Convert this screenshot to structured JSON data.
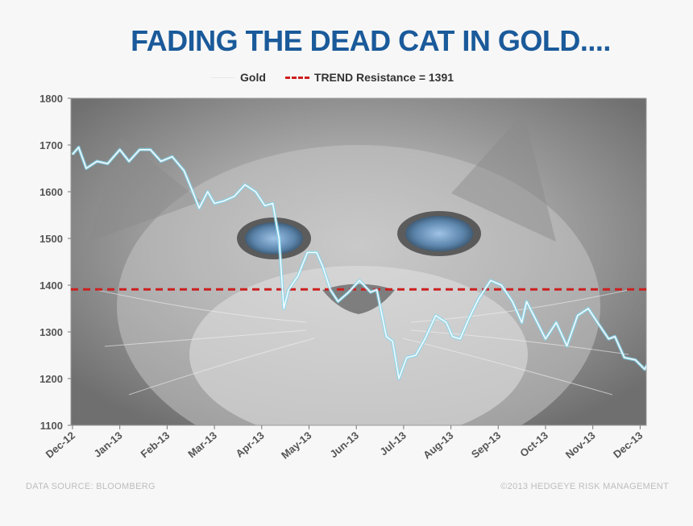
{
  "chart_data": {
    "type": "line",
    "title": "FADING THE DEAD CAT IN GOLD....",
    "xlabel": "",
    "ylabel": "",
    "ylim": [
      1100,
      1800
    ],
    "yticks": [
      1100,
      1200,
      1300,
      1400,
      1500,
      1600,
      1700,
      1800
    ],
    "x_tick_labels": [
      "Dec-12",
      "Jan-13",
      "Feb-13",
      "Mar-13",
      "Apr-13",
      "May-13",
      "Jun-13",
      "Jul-13",
      "Aug-13",
      "Sep-13",
      "Oct-13",
      "Nov-13",
      "Dec-13"
    ],
    "legend_position": "top-center",
    "series": [
      {
        "name": "Gold",
        "color": "#dff6ff",
        "points": [
          [
            "Dec-12",
            1680
          ],
          [
            "2012-12-05",
            1695
          ],
          [
            "2012-12-10",
            1650
          ],
          [
            "2012-12-17",
            1665
          ],
          [
            "2012-12-24",
            1660
          ],
          [
            "2013-01-01",
            1690
          ],
          [
            "2013-01-07",
            1665
          ],
          [
            "2013-01-14",
            1690
          ],
          [
            "2013-01-21",
            1690
          ],
          [
            "2013-01-28",
            1665
          ],
          [
            "2013-02-04",
            1675
          ],
          [
            "2013-02-11",
            1645
          ],
          [
            "2013-02-15",
            1610
          ],
          [
            "2013-02-20",
            1565
          ],
          [
            "2013-02-25",
            1600
          ],
          [
            "2013-03-01",
            1575
          ],
          [
            "2013-03-07",
            1580
          ],
          [
            "2013-03-14",
            1590
          ],
          [
            "2013-03-21",
            1615
          ],
          [
            "2013-03-28",
            1600
          ],
          [
            "2013-04-03",
            1570
          ],
          [
            "2013-04-08",
            1575
          ],
          [
            "2013-04-12",
            1500
          ],
          [
            "2013-04-15",
            1350
          ],
          [
            "2013-04-18",
            1390
          ],
          [
            "2013-04-24",
            1420
          ],
          [
            "2013-04-30",
            1470
          ],
          [
            "2013-05-06",
            1470
          ],
          [
            "2013-05-10",
            1440
          ],
          [
            "2013-05-15",
            1390
          ],
          [
            "2013-05-20",
            1365
          ],
          [
            "2013-05-27",
            1385
          ],
          [
            "2013-06-03",
            1410
          ],
          [
            "2013-06-10",
            1385
          ],
          [
            "2013-06-14",
            1390
          ],
          [
            "2013-06-20",
            1290
          ],
          [
            "2013-06-24",
            1280
          ],
          [
            "2013-06-28",
            1200
          ],
          [
            "2013-07-03",
            1245
          ],
          [
            "2013-07-09",
            1250
          ],
          [
            "2013-07-15",
            1285
          ],
          [
            "2013-07-22",
            1335
          ],
          [
            "2013-07-29",
            1320
          ],
          [
            "2013-08-02",
            1290
          ],
          [
            "2013-08-07",
            1285
          ],
          [
            "2013-08-13",
            1330
          ],
          [
            "2013-08-19",
            1370
          ],
          [
            "2013-08-27",
            1410
          ],
          [
            "2013-09-03",
            1400
          ],
          [
            "2013-09-06",
            1385
          ],
          [
            "2013-09-10",
            1365
          ],
          [
            "2013-09-16",
            1320
          ],
          [
            "2013-09-19",
            1365
          ],
          [
            "2013-09-25",
            1325
          ],
          [
            "2013-10-01",
            1285
          ],
          [
            "2013-10-08",
            1320
          ],
          [
            "2013-10-15",
            1270
          ],
          [
            "2013-10-22",
            1335
          ],
          [
            "2013-10-29",
            1350
          ],
          [
            "2013-11-04",
            1320
          ],
          [
            "2013-11-11",
            1285
          ],
          [
            "2013-11-15",
            1290
          ],
          [
            "2013-11-21",
            1245
          ],
          [
            "2013-11-28",
            1240
          ],
          [
            "2013-12-04",
            1220
          ],
          [
            "2013-12-10",
            1255
          ],
          [
            "2013-12-16",
            1235
          ],
          [
            "2013-12-19",
            1195
          ],
          [
            "2013-12-24",
            1205
          ],
          [
            "2013-12-31",
            1230
          ]
        ]
      },
      {
        "name": "TREND Resistance = 1391",
        "color": "#cc1f1f",
        "style": "dashed",
        "value": 1391
      }
    ],
    "grid": false,
    "background": "grayscale photo of a cat"
  },
  "footer": {
    "source": "DATA SOURCE: BLOOMBERG",
    "copyright": "©2013 HEDGEYE RISK MANAGEMENT"
  }
}
